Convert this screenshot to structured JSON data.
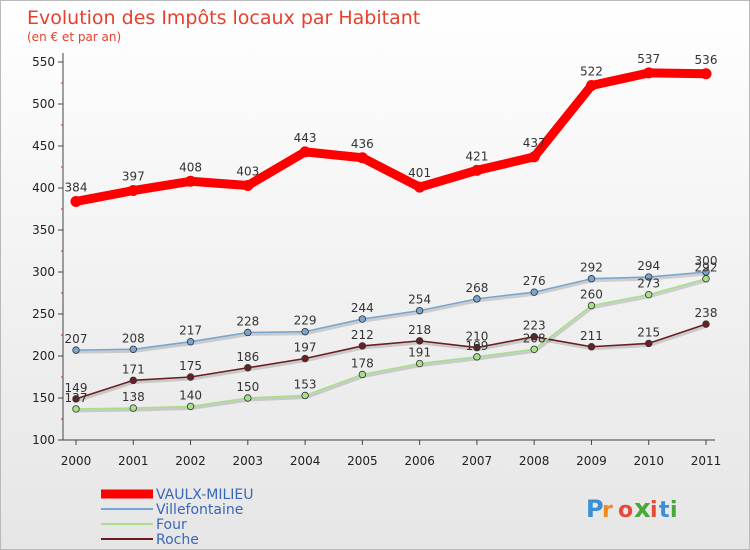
{
  "chart_data": {
    "type": "line",
    "title": "Evolution des Impôts locaux par Habitant",
    "subtitle": "(en € et par an)",
    "x": [
      "2000",
      "2001",
      "2002",
      "2003",
      "2004",
      "2005",
      "2006",
      "2007",
      "2008",
      "2009",
      "2010",
      "2011"
    ],
    "ylim": [
      100,
      550
    ],
    "yticks": [
      100,
      150,
      200,
      250,
      300,
      350,
      400,
      450,
      500,
      550
    ],
    "grid": false,
    "legend_position": "bottom-left",
    "series": [
      {
        "name": "VAULX-MILIEU",
        "color": "#ff0000",
        "values": [
          384,
          397,
          408,
          403,
          443,
          436,
          401,
          421,
          437,
          522,
          537,
          536
        ]
      },
      {
        "name": "Villefontaine",
        "color": "#7aa5d0",
        "values": [
          207,
          208,
          217,
          228,
          229,
          244,
          254,
          268,
          276,
          292,
          294,
          300
        ]
      },
      {
        "name": "Four",
        "color": "#a6e08a",
        "values": [
          137,
          138,
          140,
          150,
          153,
          178,
          191,
          199,
          208,
          260,
          273,
          292
        ]
      },
      {
        "name": "Roche",
        "color": "#6b1f22",
        "values": [
          149,
          171,
          175,
          186,
          197,
          212,
          218,
          210,
          223,
          211,
          215,
          238
        ]
      }
    ]
  },
  "watermark": {
    "text": "Proxiti"
  }
}
